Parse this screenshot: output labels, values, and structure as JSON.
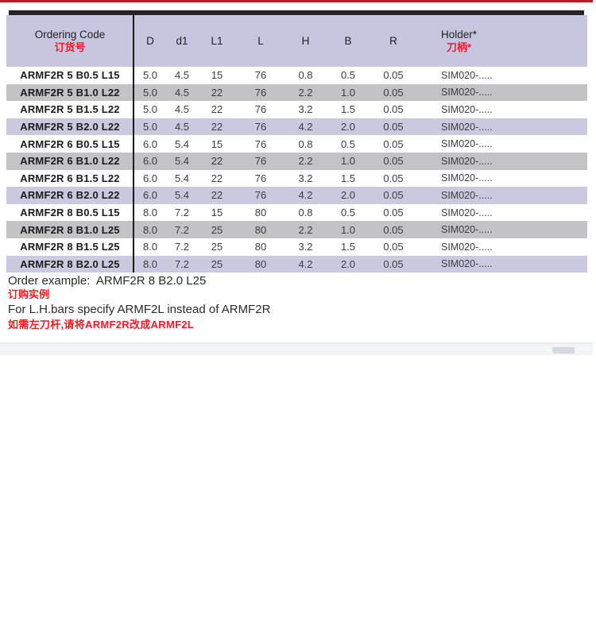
{
  "header": {
    "ordering_code_label": "Ordering Code",
    "ordering_code_label_cn": "订货号",
    "col_d": "D",
    "col_d1": "d1",
    "col_l1": "L1",
    "col_l": "L",
    "col_h": "H",
    "col_b": "B",
    "col_r": "R",
    "holder_label": "Holder*",
    "holder_label_cn": "刀柄*"
  },
  "table": {
    "rows": [
      {
        "code": "ARMF2R 5 B0.5 L15",
        "d": "5.0",
        "d1": "4.5",
        "l1": "15",
        "l": "76",
        "h": "0.8",
        "b": "0.5",
        "r": "0.05",
        "holder": "SIM020-....."
      },
      {
        "code": "ARMF2R 5 B1.0 L22",
        "d": "5.0",
        "d1": "4.5",
        "l1": "22",
        "l": "76",
        "h": "2.2",
        "b": "1.0",
        "r": "0.05",
        "holder": "SIM020-....."
      },
      {
        "code": "ARMF2R 5 B1.5 L22",
        "d": "5.0",
        "d1": "4.5",
        "l1": "22",
        "l": "76",
        "h": "3.2",
        "b": "1.5",
        "r": "0.05",
        "holder": "SIM020-....."
      },
      {
        "code": "ARMF2R 5 B2.0 L22",
        "d": "5.0",
        "d1": "4.5",
        "l1": "22",
        "l": "76",
        "h": "4.2",
        "b": "2.0",
        "r": "0.05",
        "holder": "SIM020-....."
      },
      {
        "code": "ARMF2R 6 B0.5 L15",
        "d": "6.0",
        "d1": "5.4",
        "l1": "15",
        "l": "76",
        "h": "0.8",
        "b": "0.5",
        "r": "0.05",
        "holder": "SIM020-....."
      },
      {
        "code": "ARMF2R 6 B1.0 L22",
        "d": "6.0",
        "d1": "5.4",
        "l1": "22",
        "l": "76",
        "h": "2.2",
        "b": "1.0",
        "r": "0.05",
        "holder": "SIM020-....."
      },
      {
        "code": "ARMF2R 6 B1.5 L22",
        "d": "6.0",
        "d1": "5.4",
        "l1": "22",
        "l": "76",
        "h": "3.2",
        "b": "1.5",
        "r": "0.05",
        "holder": "SIM020-....."
      },
      {
        "code": "ARMF2R 6 B2.0 L22",
        "d": "6.0",
        "d1": "5.4",
        "l1": "22",
        "l": "76",
        "h": "4.2",
        "b": "2.0",
        "r": "0.05",
        "holder": "SIM020-....."
      },
      {
        "code": "ARMF2R 8 B0.5 L15",
        "d": "8.0",
        "d1": "7.2",
        "l1": "15",
        "l": "80",
        "h": "0.8",
        "b": "0.5",
        "r": "0.05",
        "holder": "SIM020-....."
      },
      {
        "code": "ARMF2R 8 B1.0 L25",
        "d": "8.0",
        "d1": "7.2",
        "l1": "25",
        "l": "80",
        "h": "2.2",
        "b": "1.0",
        "r": "0.05",
        "holder": "SIM020-....."
      },
      {
        "code": "ARMF2R 8 B1.5 L25",
        "d": "8.0",
        "d1": "7.2",
        "l1": "25",
        "l": "80",
        "h": "3.2",
        "b": "1.5",
        "r": "0.05",
        "holder": "SIM020-....."
      },
      {
        "code": "ARMF2R 8 B2.0 L25",
        "d": "8.0",
        "d1": "7.2",
        "l1": "25",
        "l": "80",
        "h": "4.2",
        "b": "2.0",
        "r": "0.05",
        "holder": "SIM020-....."
      }
    ]
  },
  "footer": {
    "order_example": "Order example:  ARMF2R 8 B2.0 L25",
    "order_example_cn": "订购实例",
    "lh_note": "For L.H.bars specify ARMF2L instead of ARMF2R",
    "lh_note_cn": "如需左刀杆,请将ARMF2R改成ARMF2L"
  },
  "colors": {
    "accent_red": "#b01f24",
    "text_red": "#ee1c25",
    "header_bg": "#c7c5df",
    "stripe_gray": "#c3c2c4",
    "stripe_lavender": "#cbc9e0",
    "topbar_black": "#262223"
  }
}
